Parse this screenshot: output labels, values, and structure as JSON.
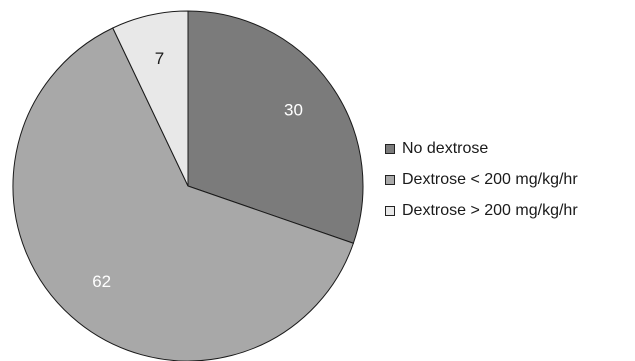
{
  "chart_data": {
    "type": "pie",
    "title": "",
    "slices": [
      {
        "label": "No dextrose",
        "value": 30,
        "color": "#7b7b7b",
        "label_color": "#ffffff"
      },
      {
        "label": "Dextrose < 200 mg/kg/hr",
        "value": 62,
        "color": "#a8a8a8",
        "label_color": "#ffffff"
      },
      {
        "label": "Dextrose > 200 mg/kg/hr",
        "value": 7,
        "color": "#e8e8e8",
        "label_color": "#1a1a1a"
      }
    ],
    "start_angle": "top",
    "direction": "clockwise",
    "legend_position": "right"
  }
}
